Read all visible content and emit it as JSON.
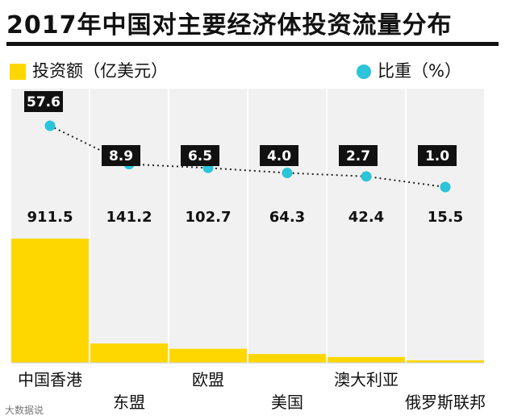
{
  "title": "2017年中国对主要经济体投资流量分布",
  "legend": {
    "bar_label": "投资额（亿美元）",
    "dot_label": "比重（%）"
  },
  "colors": {
    "bar": "#ffd700",
    "dot": "#2bc4d8",
    "badge_bg": "#111111",
    "badge_text": "#ffffff",
    "column_bg": "#f1f1f1"
  },
  "chart_data": {
    "type": "bar",
    "categories": [
      "中国香港",
      "东盟",
      "欧盟",
      "美国",
      "澳大利亚",
      "俄罗斯联邦"
    ],
    "series": [
      {
        "name": "投资额（亿美元）",
        "type": "bar",
        "values": [
          911.5,
          141.2,
          102.7,
          64.3,
          42.4,
          15.5
        ]
      },
      {
        "name": "比重（%）",
        "type": "line",
        "values": [
          57.6,
          8.9,
          6.5,
          4.0,
          2.7,
          1.0
        ]
      }
    ],
    "value_labels": [
      "911.5",
      "141.2",
      "102.7",
      "64.3",
      "42.4",
      "15.5"
    ],
    "share_labels": [
      "57.6",
      "8.9",
      "6.5",
      "4.0",
      "2.7",
      "1.0"
    ],
    "legend_position": "top",
    "grid": false
  },
  "watermark": "大数据说"
}
